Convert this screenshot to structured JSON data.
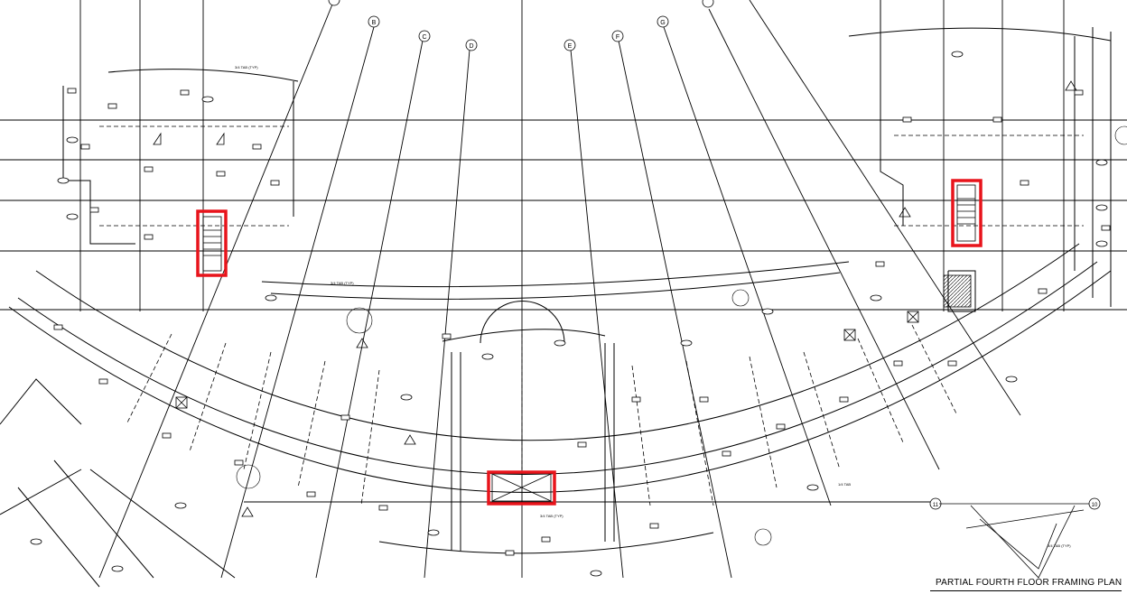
{
  "drawing": {
    "title": "PARTIAL FOURTH FLOOR FRAMING PLAN",
    "grid_bubbles": [
      "B",
      "C",
      "D",
      "E",
      "F",
      "G",
      "10",
      "11"
    ],
    "notes": [
      "3/4 TAB (TYP)",
      "3/4 TAB (TYP)",
      "3/4 TAB (TYP)",
      "1/4 TAB",
      "3/4 TAB (TYP)"
    ]
  },
  "highlight": {
    "color": "#e8141b"
  },
  "colors": {
    "line": "#000000",
    "background": "#ffffff"
  }
}
